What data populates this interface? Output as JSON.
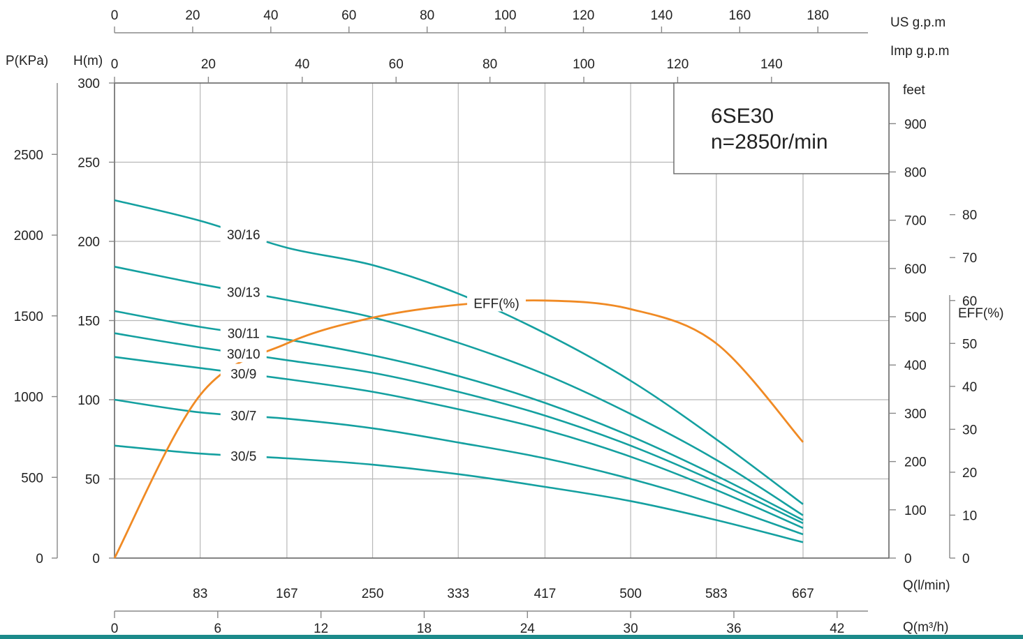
{
  "chart_data": {
    "type": "line",
    "title": "6SE30",
    "subtitle": "n=2850r/min",
    "axes": {
      "us_gpm": {
        "unit": "US  g.p.m",
        "ticks": [
          0,
          20,
          40,
          60,
          80,
          100,
          120,
          140,
          160,
          180
        ]
      },
      "imp_gpm": {
        "unit": "Imp  g.p.m",
        "ticks": [
          0,
          20,
          40,
          60,
          80,
          100,
          120,
          140
        ]
      },
      "pressure": {
        "unit": "P(KPa)",
        "ticks": [
          0,
          500,
          1000,
          1500,
          2000,
          2500
        ]
      },
      "head": {
        "unit": "H(m)",
        "ticks": [
          0,
          50,
          100,
          150,
          200,
          250,
          300
        ],
        "ylim": [
          0,
          300
        ]
      },
      "feet": {
        "unit": "feet",
        "ticks": [
          0,
          100,
          200,
          300,
          400,
          500,
          600,
          700,
          800,
          900
        ]
      },
      "eff": {
        "unit": "EFF(%)",
        "ticks": [
          0,
          10,
          20,
          30,
          40,
          50,
          60,
          70,
          80
        ]
      },
      "q_lmin": {
        "unit": "Q(l/min)",
        "ticks": [
          83,
          167,
          250,
          333,
          417,
          500,
          583,
          667
        ],
        "xlim": [
          0,
          667
        ]
      },
      "q_m3h": {
        "unit": "Q(m³/h)",
        "ticks": [
          0,
          6,
          12,
          18,
          24,
          30,
          36,
          42
        ]
      }
    },
    "grid": true,
    "x_label": "Q(l/min)",
    "series": [
      {
        "name": "30/16",
        "x": [
          0,
          83,
          167,
          250,
          333,
          417,
          500,
          583,
          667
        ],
        "y": [
          226,
          213,
          196,
          185,
          167,
          142,
          112,
          75,
          34
        ]
      },
      {
        "name": "30/13",
        "x": [
          0,
          83,
          167,
          250,
          333,
          417,
          500,
          583,
          667
        ],
        "y": [
          184,
          173,
          163,
          152,
          136,
          116,
          91,
          62,
          27
        ]
      },
      {
        "name": "30/11",
        "x": [
          0,
          83,
          167,
          250,
          333,
          417,
          500,
          583,
          667
        ],
        "y": [
          156,
          146,
          138,
          128,
          115,
          98,
          77,
          52,
          24
        ]
      },
      {
        "name": "30/10",
        "x": [
          0,
          83,
          167,
          250,
          333,
          417,
          500,
          583,
          667
        ],
        "y": [
          142,
          133,
          125,
          117,
          105,
          90,
          71,
          48,
          22
        ]
      },
      {
        "name": "30/9",
        "x": [
          0,
          83,
          167,
          250,
          333,
          417,
          500,
          583,
          667
        ],
        "y": [
          127,
          120,
          113,
          105,
          94,
          81,
          64,
          43,
          19
        ]
      },
      {
        "name": "30/7",
        "x": [
          0,
          83,
          167,
          250,
          333,
          417,
          500,
          583,
          667
        ],
        "y": [
          100,
          92,
          88,
          82,
          73,
          63,
          50,
          34,
          15
        ]
      },
      {
        "name": "30/5",
        "x": [
          0,
          83,
          167,
          250,
          333,
          417,
          500,
          583,
          667
        ],
        "y": [
          71,
          66,
          63,
          59,
          53,
          45,
          36,
          24,
          10
        ]
      }
    ],
    "efficiency": {
      "name": "EFF(%)",
      "x": [
        0,
        83,
        167,
        250,
        333,
        417,
        500,
        583,
        667
      ],
      "y": [
        0,
        38,
        50,
        56,
        59,
        60,
        58,
        50,
        27
      ]
    }
  }
}
